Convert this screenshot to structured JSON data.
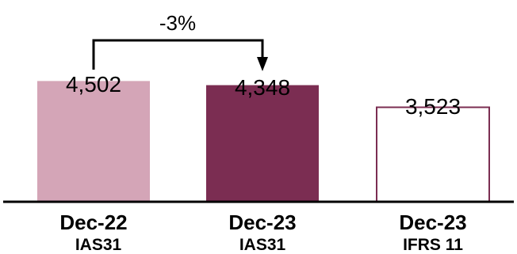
{
  "chart_data": {
    "type": "bar",
    "title": "",
    "xlabel": "",
    "ylabel": "",
    "ylim": [
      0,
      5000
    ],
    "grid": false,
    "legend": "none",
    "categories": [
      "Dec-22",
      "Dec-23",
      "Dec-23"
    ],
    "sublabels": [
      "IAS31",
      "IAS31",
      "IFRS 11"
    ],
    "values": [
      4502,
      4348,
      3523
    ],
    "value_labels": [
      "4,502",
      "4,348",
      "3,523"
    ],
    "bar_styles": [
      {
        "fill": "#d4a5b7",
        "stroke": "#d4a5b7"
      },
      {
        "fill": "#7b2d52",
        "stroke": "#7b2d52"
      },
      {
        "fill": "#ffffff",
        "stroke": "#7b2d52"
      }
    ],
    "annotation": {
      "text": "-3%",
      "from_index": 0,
      "to_index": 1
    }
  }
}
